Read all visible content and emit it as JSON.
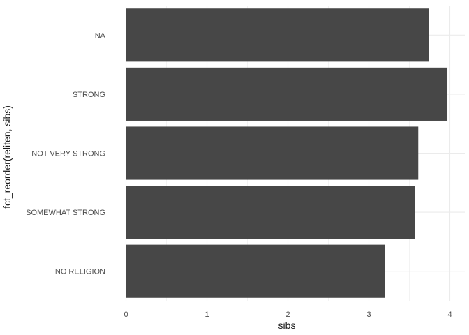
{
  "chart_data": {
    "type": "bar",
    "orientation": "horizontal",
    "xlabel": "sibs",
    "ylabel": "fct_reorder(reliten, sibs)",
    "categories": [
      "NO RELIGION",
      "SOMEWHAT STRONG",
      "NOT VERY STRONG",
      "STRONG",
      "NA"
    ],
    "values": [
      3.2,
      3.57,
      3.61,
      3.97,
      3.74
    ],
    "xlim": [
      0,
      4.1
    ],
    "xticks": [
      "0",
      "1",
      "2",
      "3",
      "4"
    ],
    "grid": true,
    "bar_color": "#474747",
    "grid_color": "#ebebeb"
  }
}
